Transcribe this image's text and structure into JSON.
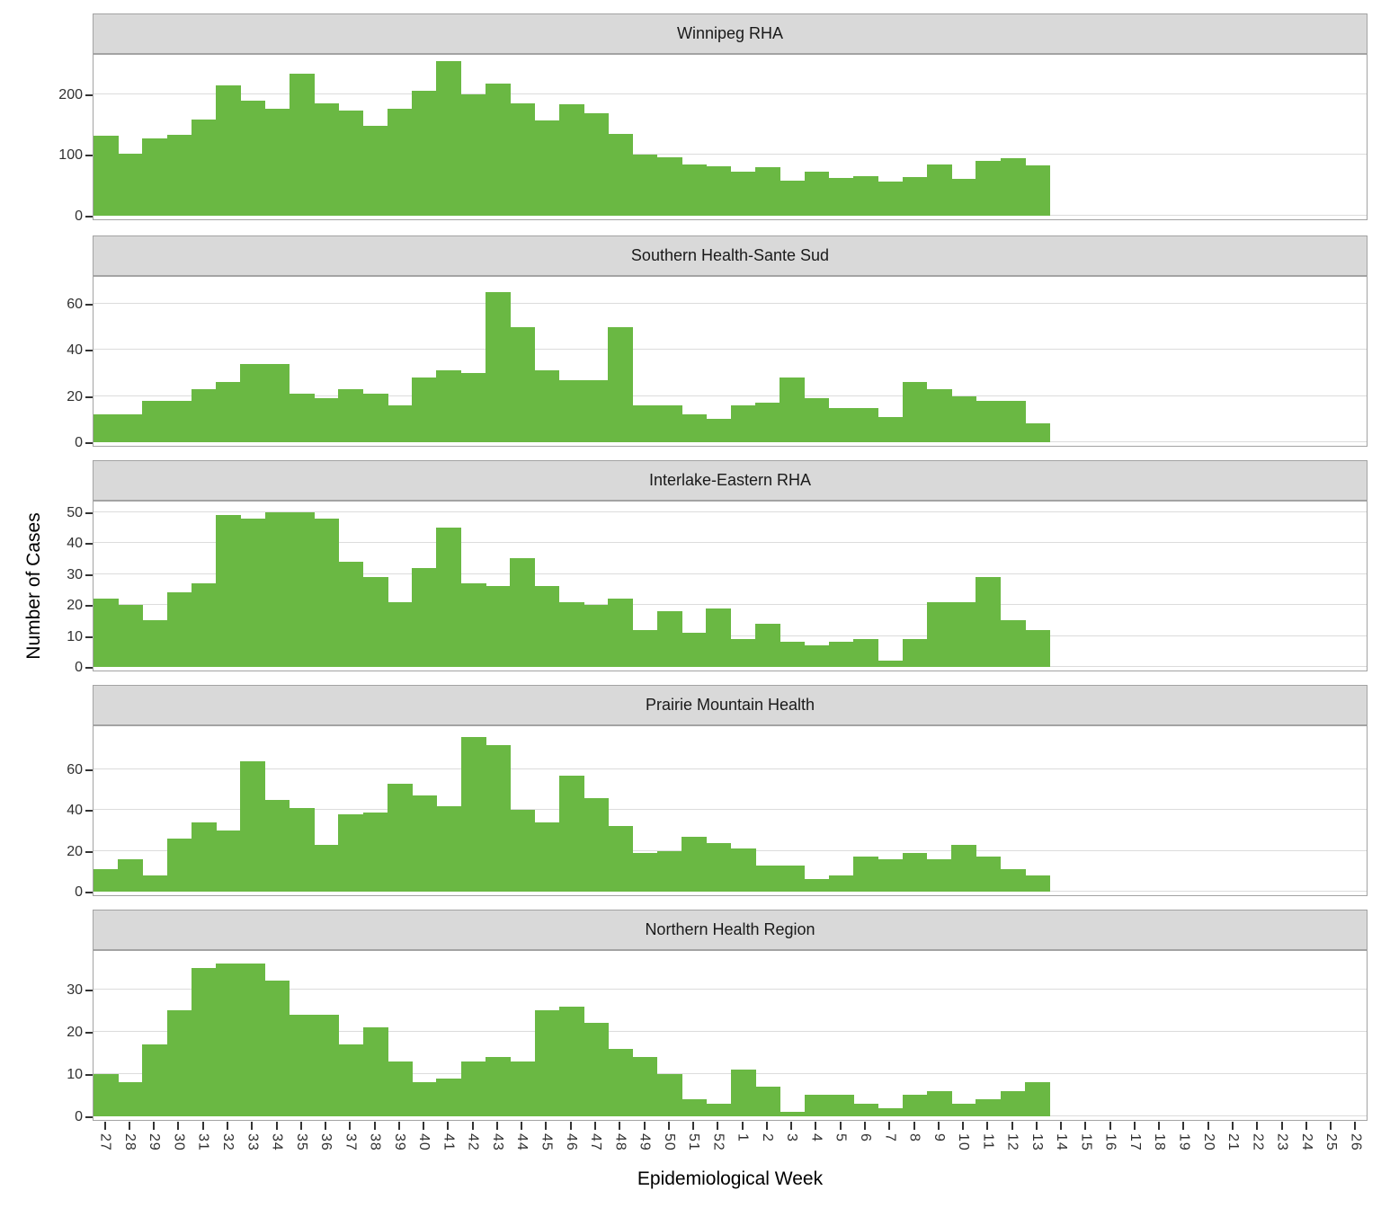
{
  "chart_data": {
    "type": "bar",
    "title": "",
    "xlabel": "Epidemiological Week",
    "ylabel": "Number of Cases",
    "bar_color": "#6ab843",
    "grid": true,
    "legend": "none",
    "categories": [
      "27",
      "28",
      "29",
      "30",
      "31",
      "32",
      "33",
      "34",
      "35",
      "36",
      "37",
      "38",
      "39",
      "40",
      "41",
      "42",
      "43",
      "44",
      "45",
      "46",
      "47",
      "48",
      "49",
      "50",
      "51",
      "52",
      "1",
      "2",
      "3",
      "4",
      "5",
      "6",
      "7",
      "8",
      "9",
      "10",
      "11",
      "12",
      "13",
      "14",
      "15",
      "16",
      "17",
      "18",
      "19",
      "20",
      "21",
      "22",
      "23",
      "24",
      "25",
      "26"
    ],
    "facets": [
      {
        "title": "Winnipeg RHA",
        "yticks": [
          0,
          100,
          200
        ],
        "ymax": 268,
        "values": [
          132,
          102,
          128,
          134,
          159,
          215,
          190,
          176,
          234,
          185,
          173,
          148,
          176,
          206,
          255,
          200,
          217,
          185,
          157,
          184,
          169,
          135,
          101,
          96,
          85,
          81,
          73,
          80,
          58,
          72,
          62,
          65,
          57,
          63,
          84,
          60,
          91,
          95,
          83
        ]
      },
      {
        "title": "Southern Health-Sante Sud",
        "yticks": [
          0,
          20,
          40,
          60
        ],
        "ymax": 72.5,
        "values": [
          12,
          12,
          18,
          18,
          23,
          26,
          34,
          34,
          21,
          19,
          23,
          21,
          16,
          28,
          31,
          30,
          65,
          50,
          31,
          27,
          27,
          50,
          16,
          16,
          12,
          10,
          16,
          17,
          28,
          19,
          15,
          15,
          11,
          26,
          23,
          20,
          18,
          18,
          8
        ]
      },
      {
        "title": "Interlake-Eastern RHA",
        "yticks": [
          0,
          10,
          20,
          30,
          40,
          50
        ],
        "ymax": 54,
        "values": [
          22,
          20,
          15,
          24,
          27,
          49,
          48,
          50,
          50,
          48,
          34,
          29,
          21,
          32,
          45,
          27,
          26,
          35,
          26,
          21,
          20,
          22,
          12,
          18,
          11,
          19,
          9,
          14,
          8,
          7,
          8,
          9,
          2,
          9,
          21,
          21,
          29,
          15,
          12
        ]
      },
      {
        "title": "Prairie Mountain Health",
        "yticks": [
          0,
          20,
          40,
          60
        ],
        "ymax": 82,
        "values": [
          11,
          16,
          8,
          26,
          34,
          30,
          64,
          45,
          41,
          23,
          38,
          39,
          53,
          47,
          42,
          76,
          72,
          40,
          34,
          57,
          46,
          32,
          19,
          20,
          27,
          24,
          21,
          13,
          13,
          6,
          8,
          17,
          16,
          19,
          16,
          23,
          17,
          11,
          8
        ]
      },
      {
        "title": "Northern Health Region",
        "yticks": [
          0,
          10,
          20,
          30
        ],
        "ymax": 39.5,
        "values": [
          10,
          8,
          17,
          25,
          35,
          36,
          36,
          32,
          24,
          24,
          17,
          21,
          13,
          8,
          9,
          13,
          14,
          13,
          25,
          26,
          22,
          16,
          14,
          10,
          4,
          3,
          11,
          7,
          1,
          5,
          5,
          3,
          2,
          5,
          6,
          3,
          4,
          6,
          8
        ]
      }
    ]
  },
  "colors": {
    "bar": "#6ab843",
    "strip_bg": "#d9d9d9",
    "gridline": "#dcdcdc",
    "panel_border": "#a3a3a3",
    "tick_text": "#303030"
  }
}
